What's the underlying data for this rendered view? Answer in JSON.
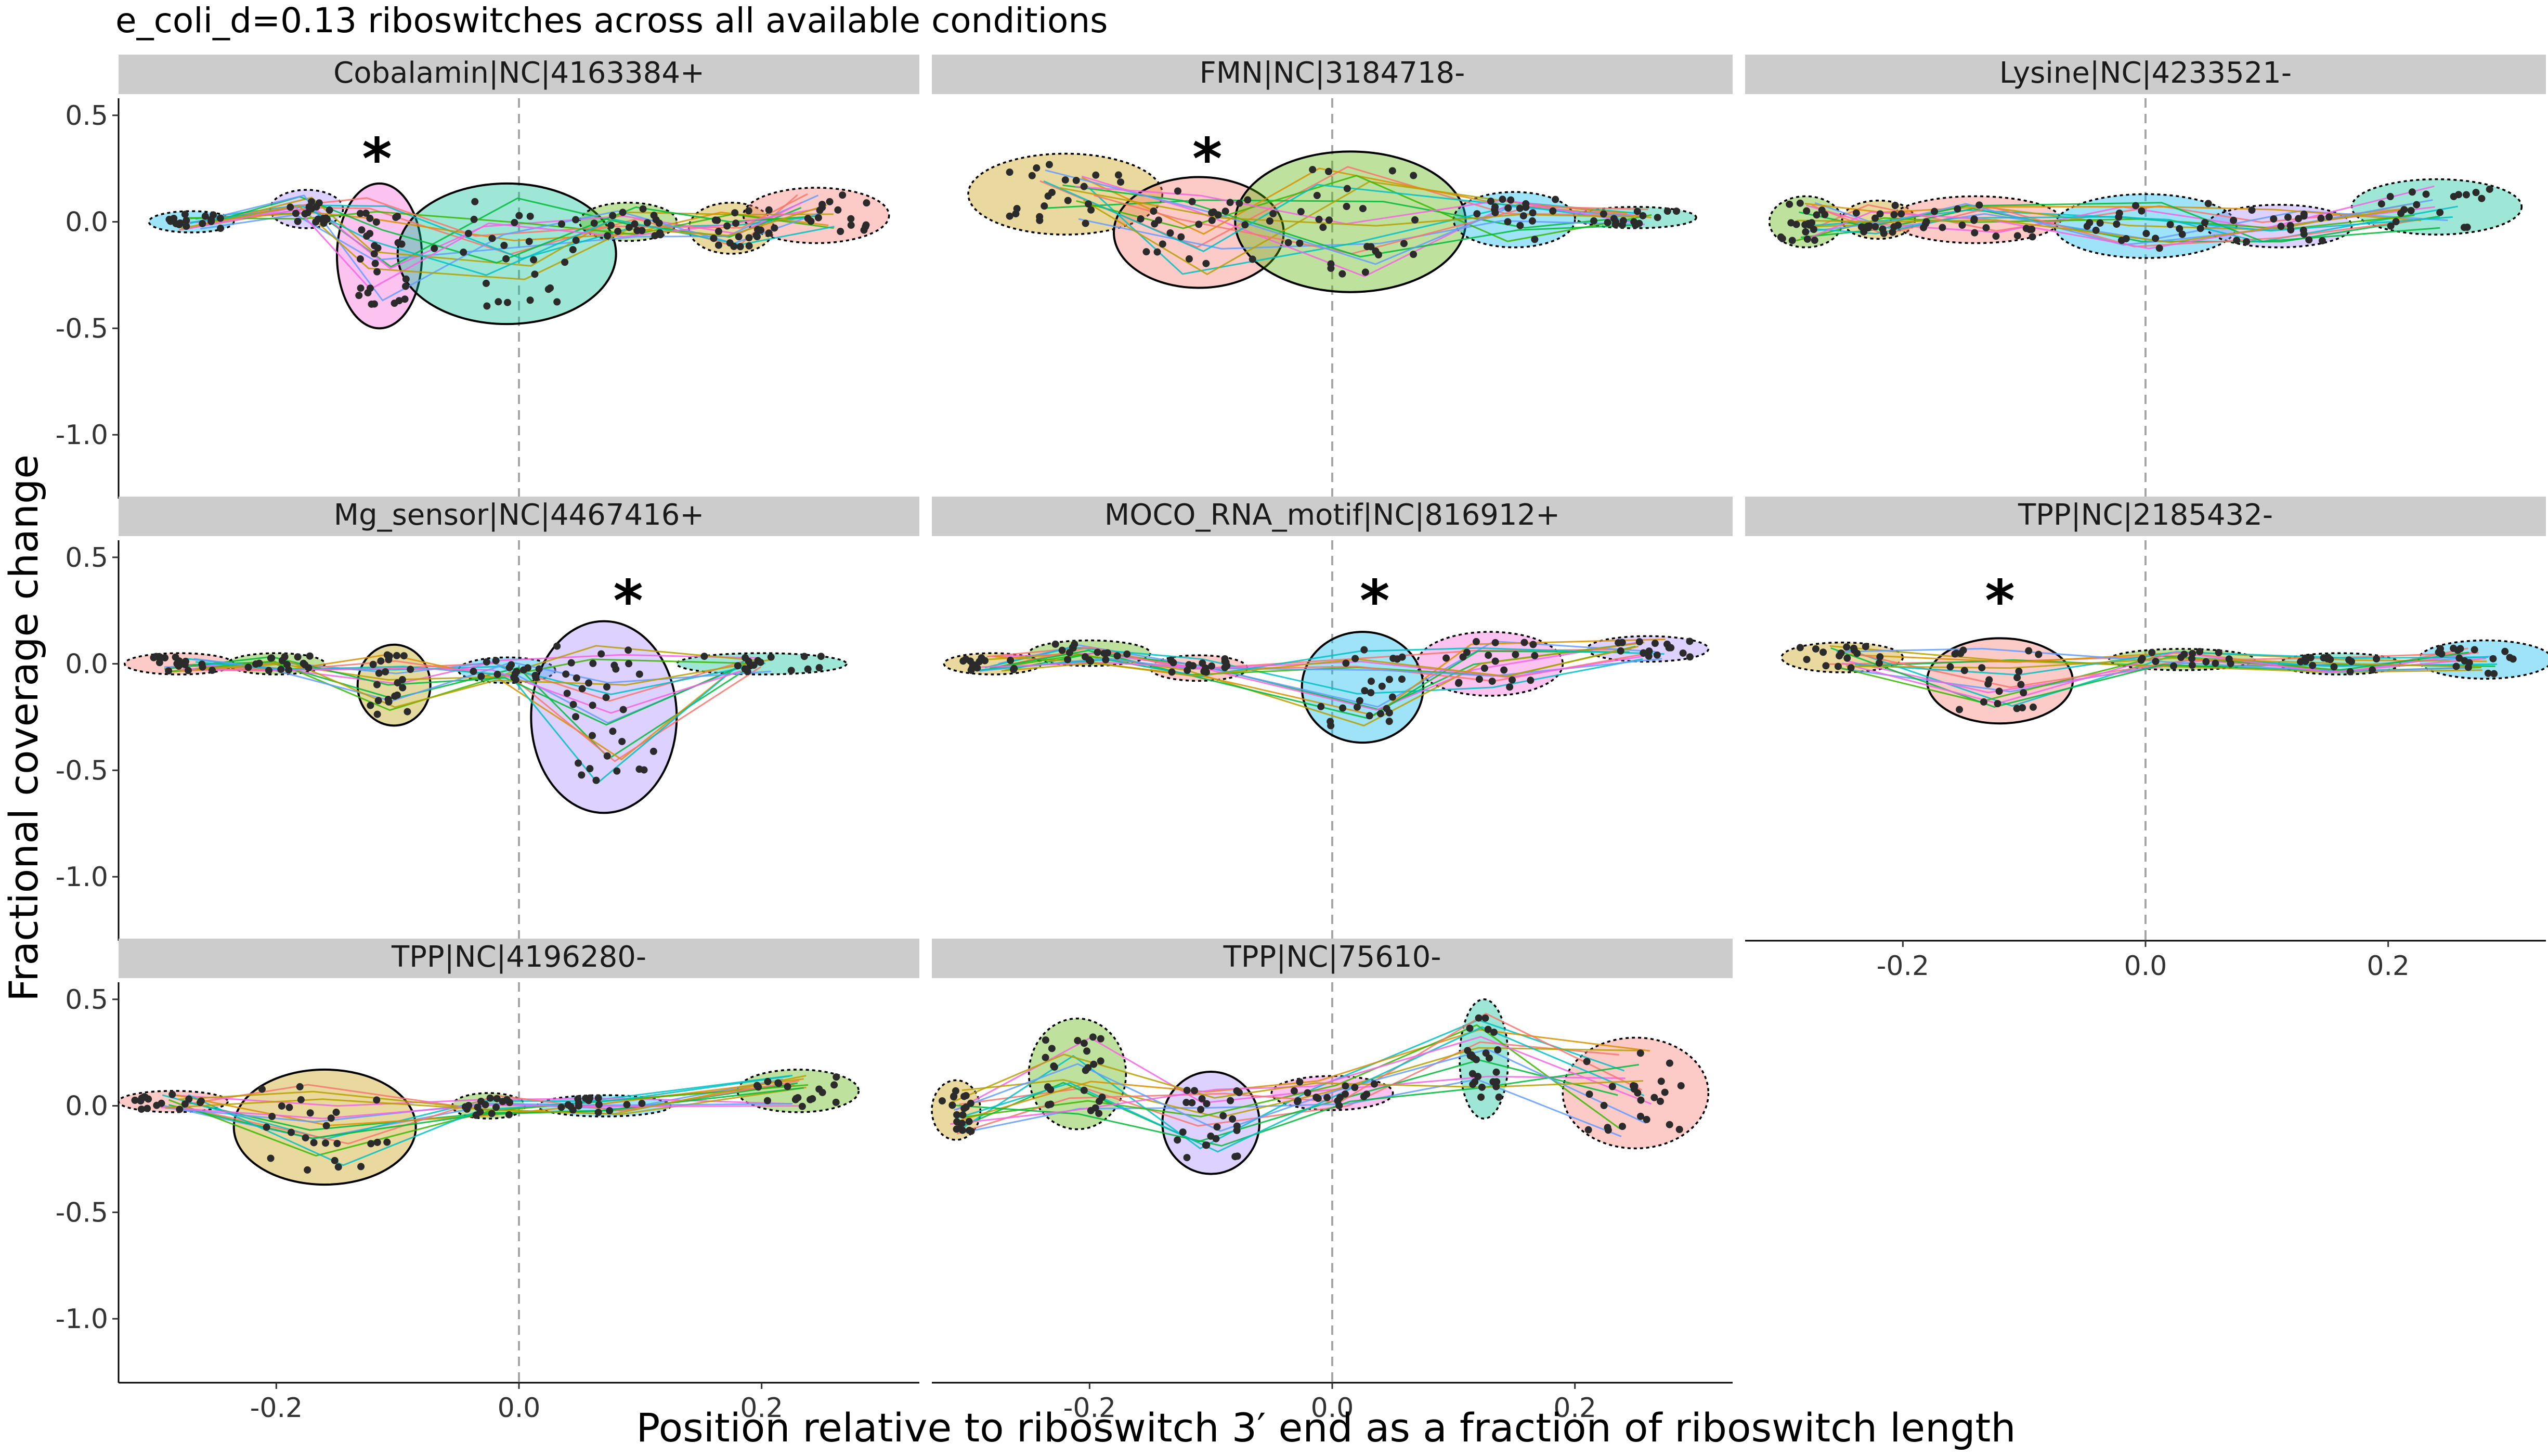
{
  "figure": {
    "title": "e_coli_d=0.13 riboswitches across all available conditions",
    "xlabel": "Position relative to riboswitch 3′ end as a fraction of riboswitch length",
    "ylabel": "Fractional coverage change"
  },
  "colors": {
    "strip_bg": "#cccccc",
    "point": "#2b2b2b",
    "vline": "#a6a6a6",
    "cluster_fills": [
      "#f8766d",
      "#c49a00",
      "#53b400",
      "#00c094",
      "#00b6eb",
      "#a58aff",
      "#fb61d7",
      "#b79f00"
    ],
    "line_colors": [
      "#f8766d",
      "#00ba38",
      "#619cff",
      "#00bfc4",
      "#f564e3",
      "#b79f00",
      "#d89000",
      "#39b600"
    ]
  },
  "chart_data": {
    "type": "scatter",
    "facet_layout": {
      "ncol": 3,
      "nrow": 3
    },
    "xlim": [
      -0.33,
      0.33
    ],
    "ylim": [
      -1.3,
      0.58
    ],
    "x_ticks": [
      -0.2,
      0.0,
      0.2
    ],
    "x_tick_labels": [
      "-0.2",
      "0.0",
      "0.2"
    ],
    "y_ticks": [
      0.5,
      0.0,
      -0.5,
      -1.0
    ],
    "y_tick_labels": [
      "0.5",
      "0.0",
      "-0.5",
      "-1.0"
    ],
    "reference_line_x": 0.0,
    "significance_label": "*",
    "panels": [
      {
        "title": "Cobalamin|NC|4163384+",
        "star": {
          "x": -0.117,
          "y": 0.3
        },
        "clusters": [
          {
            "cx": -0.27,
            "cy": 0.0,
            "rx": 0.035,
            "ry": 0.05,
            "color": 4,
            "significant": false
          },
          {
            "cx": -0.175,
            "cy": 0.06,
            "rx": 0.03,
            "ry": 0.09,
            "color": 5,
            "significant": false
          },
          {
            "cx": -0.115,
            "cy": -0.16,
            "rx": 0.035,
            "ry": 0.34,
            "color": 6,
            "significant": true
          },
          {
            "cx": -0.01,
            "cy": -0.15,
            "rx": 0.09,
            "ry": 0.33,
            "color": 3,
            "significant": true
          },
          {
            "cx": 0.09,
            "cy": 0.0,
            "rx": 0.04,
            "ry": 0.09,
            "color": 2,
            "significant": false
          },
          {
            "cx": 0.175,
            "cy": -0.03,
            "rx": 0.035,
            "ry": 0.12,
            "color": 1,
            "significant": false
          },
          {
            "cx": 0.245,
            "cy": 0.03,
            "rx": 0.06,
            "ry": 0.13,
            "color": 0,
            "significant": false
          }
        ]
      },
      {
        "title": "FMN|NC|3184718-",
        "star": {
          "x": -0.103,
          "y": 0.3
        },
        "clusters": [
          {
            "cx": -0.22,
            "cy": 0.13,
            "rx": 0.08,
            "ry": 0.19,
            "color": 1,
            "significant": false
          },
          {
            "cx": -0.11,
            "cy": -0.05,
            "rx": 0.07,
            "ry": 0.26,
            "color": 0,
            "significant": true
          },
          {
            "cx": 0.015,
            "cy": 0.0,
            "rx": 0.095,
            "ry": 0.33,
            "color": 2,
            "significant": true
          },
          {
            "cx": 0.15,
            "cy": 0.01,
            "rx": 0.05,
            "ry": 0.13,
            "color": 4,
            "significant": false
          },
          {
            "cx": 0.25,
            "cy": 0.02,
            "rx": 0.05,
            "ry": 0.05,
            "color": 3,
            "significant": false
          }
        ]
      },
      {
        "title": "Lysine|NC|4233521-",
        "star": null,
        "clusters": [
          {
            "cx": -0.28,
            "cy": 0.0,
            "rx": 0.03,
            "ry": 0.12,
            "color": 2,
            "significant": false
          },
          {
            "cx": -0.22,
            "cy": 0.01,
            "rx": 0.03,
            "ry": 0.09,
            "color": 1,
            "significant": false
          },
          {
            "cx": -0.14,
            "cy": 0.01,
            "rx": 0.07,
            "ry": 0.11,
            "color": 0,
            "significant": false
          },
          {
            "cx": 0.0,
            "cy": -0.02,
            "rx": 0.075,
            "ry": 0.15,
            "color": 4,
            "significant": false
          },
          {
            "cx": 0.11,
            "cy": -0.02,
            "rx": 0.06,
            "ry": 0.1,
            "color": 5,
            "significant": false
          },
          {
            "cx": 0.24,
            "cy": 0.07,
            "rx": 0.07,
            "ry": 0.13,
            "color": 3,
            "significant": false
          }
        ]
      },
      {
        "title": "Mg_sensor|NC|4467416+",
        "star": {
          "x": 0.09,
          "y": 0.3
        },
        "clusters": [
          {
            "cx": -0.28,
            "cy": 0.0,
            "rx": 0.045,
            "ry": 0.05,
            "color": 0,
            "significant": false
          },
          {
            "cx": -0.2,
            "cy": 0.0,
            "rx": 0.04,
            "ry": 0.05,
            "color": 2,
            "significant": false
          },
          {
            "cx": -0.103,
            "cy": -0.1,
            "rx": 0.03,
            "ry": 0.19,
            "color": 7,
            "significant": true
          },
          {
            "cx": -0.01,
            "cy": -0.03,
            "rx": 0.04,
            "ry": 0.06,
            "color": 4,
            "significant": false
          },
          {
            "cx": 0.07,
            "cy": -0.25,
            "rx": 0.06,
            "ry": 0.45,
            "color": 5,
            "significant": true
          },
          {
            "cx": 0.2,
            "cy": 0.0,
            "rx": 0.07,
            "ry": 0.05,
            "color": 3,
            "significant": false
          }
        ]
      },
      {
        "title": "MOCO_RNA_motif|NC|816912+",
        "star": {
          "x": 0.035,
          "y": 0.3
        },
        "clusters": [
          {
            "cx": -0.28,
            "cy": 0.0,
            "rx": 0.04,
            "ry": 0.05,
            "color": 1,
            "significant": false
          },
          {
            "cx": -0.2,
            "cy": 0.05,
            "rx": 0.05,
            "ry": 0.06,
            "color": 2,
            "significant": false
          },
          {
            "cx": -0.11,
            "cy": -0.02,
            "rx": 0.04,
            "ry": 0.06,
            "color": 0,
            "significant": false
          },
          {
            "cx": 0.025,
            "cy": -0.11,
            "rx": 0.05,
            "ry": 0.26,
            "color": 4,
            "significant": true
          },
          {
            "cx": 0.13,
            "cy": 0.0,
            "rx": 0.06,
            "ry": 0.15,
            "color": 6,
            "significant": false
          },
          {
            "cx": 0.26,
            "cy": 0.07,
            "rx": 0.05,
            "ry": 0.06,
            "color": 5,
            "significant": false
          }
        ]
      },
      {
        "title": "TPP|NC|2185432-",
        "star": {
          "x": -0.12,
          "y": 0.3
        },
        "clusters": [
          {
            "cx": -0.25,
            "cy": 0.03,
            "rx": 0.05,
            "ry": 0.07,
            "color": 1,
            "significant": false
          },
          {
            "cx": -0.12,
            "cy": -0.08,
            "rx": 0.06,
            "ry": 0.2,
            "color": 0,
            "significant": true
          },
          {
            "cx": 0.03,
            "cy": 0.02,
            "rx": 0.06,
            "ry": 0.05,
            "color": 2,
            "significant": false
          },
          {
            "cx": 0.16,
            "cy": 0.0,
            "rx": 0.05,
            "ry": 0.05,
            "color": 3,
            "significant": false
          },
          {
            "cx": 0.28,
            "cy": 0.02,
            "rx": 0.055,
            "ry": 0.09,
            "color": 4,
            "significant": false
          }
        ]
      },
      {
        "title": "TPP|NC|4196280-",
        "star": null,
        "clusters": [
          {
            "cx": -0.285,
            "cy": 0.02,
            "rx": 0.045,
            "ry": 0.05,
            "color": 0,
            "significant": false
          },
          {
            "cx": -0.16,
            "cy": -0.1,
            "rx": 0.075,
            "ry": 0.27,
            "color": 1,
            "significant": true
          },
          {
            "cx": -0.025,
            "cy": 0.0,
            "rx": 0.03,
            "ry": 0.06,
            "color": 2,
            "significant": false
          },
          {
            "cx": 0.07,
            "cy": 0.0,
            "rx": 0.055,
            "ry": 0.05,
            "color": 4,
            "significant": false
          },
          {
            "cx": 0.23,
            "cy": 0.07,
            "rx": 0.05,
            "ry": 0.1,
            "color": 2,
            "significant": false
          }
        ]
      },
      {
        "title": "TPP|NC|75610-",
        "star": null,
        "clusters": [
          {
            "cx": -0.31,
            "cy": -0.02,
            "rx": 0.02,
            "ry": 0.14,
            "color": 1,
            "significant": false
          },
          {
            "cx": -0.21,
            "cy": 0.15,
            "rx": 0.04,
            "ry": 0.26,
            "color": 2,
            "significant": false
          },
          {
            "cx": -0.1,
            "cy": -0.08,
            "rx": 0.04,
            "ry": 0.24,
            "color": 5,
            "significant": true
          },
          {
            "cx": 0.0,
            "cy": 0.06,
            "rx": 0.05,
            "ry": 0.08,
            "color": 6,
            "significant": false
          },
          {
            "cx": 0.125,
            "cy": 0.22,
            "rx": 0.02,
            "ry": 0.28,
            "color": 3,
            "significant": false
          },
          {
            "cx": 0.25,
            "cy": 0.06,
            "rx": 0.06,
            "ry": 0.26,
            "color": 0,
            "significant": false
          }
        ]
      }
    ]
  }
}
